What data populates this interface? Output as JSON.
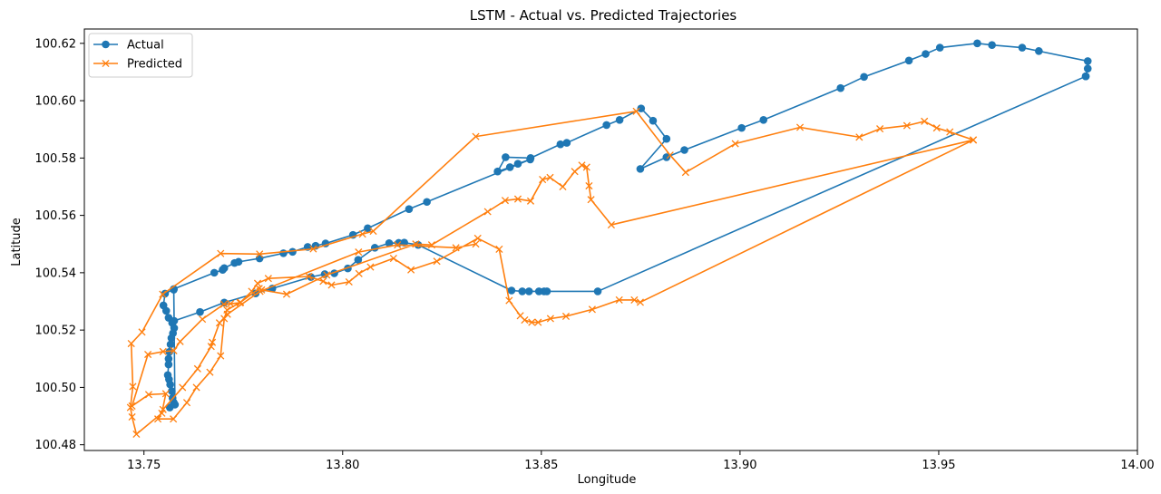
{
  "chart_data": {
    "type": "line",
    "title": "LSTM - Actual vs. Predicted Trajectories",
    "xlabel": "Longitude",
    "ylabel": "Latitude",
    "xlim": [
      13.735,
      14.0
    ],
    "ylim": [
      100.478,
      100.625
    ],
    "xticks": [
      13.75,
      13.8,
      13.85,
      13.9,
      13.95,
      14.0
    ],
    "xtick_labels": [
      "13.75",
      "13.80",
      "13.85",
      "13.90",
      "13.95",
      "14.00"
    ],
    "yticks": [
      100.48,
      100.5,
      100.52,
      100.54,
      100.56,
      100.58,
      100.6,
      100.62
    ],
    "ytick_labels": [
      "100.48",
      "100.50",
      "100.52",
      "100.54",
      "100.56",
      "100.58",
      "100.60",
      "100.62"
    ],
    "grid": false,
    "legend_position": "top-left",
    "series": [
      {
        "name": "Actual",
        "color": "#1f77b4",
        "marker": "circle",
        "points": [
          [
            13.987,
            100.6085
          ],
          [
            13.9875,
            100.6112
          ],
          [
            13.9875,
            100.6138
          ],
          [
            13.9752,
            100.6173
          ],
          [
            13.971,
            100.6185
          ],
          [
            13.9634,
            100.6194
          ],
          [
            13.9597,
            100.62
          ],
          [
            13.9503,
            100.6185
          ],
          [
            13.9467,
            100.6163
          ],
          [
            13.9425,
            100.614
          ],
          [
            13.9312,
            100.6083
          ],
          [
            13.9253,
            100.6044
          ],
          [
            13.9059,
            100.5933
          ],
          [
            13.9004,
            100.5905
          ],
          [
            13.886,
            100.5828
          ],
          [
            13.8815,
            100.5803
          ],
          [
            13.8749,
            100.5762
          ],
          [
            13.8815,
            100.5867
          ],
          [
            13.8781,
            100.593
          ],
          [
            13.8751,
            100.5973
          ],
          [
            13.8697,
            100.5933
          ],
          [
            13.8664,
            100.5915
          ],
          [
            13.8564,
            100.5853
          ],
          [
            13.8548,
            100.5848
          ],
          [
            13.8473,
            100.58
          ],
          [
            13.841,
            100.5803
          ],
          [
            13.839,
            100.5753
          ],
          [
            13.8421,
            100.5768
          ],
          [
            13.8441,
            100.578
          ],
          [
            13.8472,
            100.5795
          ],
          [
            13.8212,
            100.5647
          ],
          [
            13.8167,
            100.5622
          ],
          [
            13.8063,
            100.5555
          ],
          [
            13.8026,
            100.5532
          ],
          [
            13.7957,
            100.5502
          ],
          [
            13.7932,
            100.5494
          ],
          [
            13.7912,
            100.549
          ],
          [
            13.7874,
            100.5473
          ],
          [
            13.7851,
            100.5468
          ],
          [
            13.7791,
            100.545
          ],
          [
            13.7738,
            100.5438
          ],
          [
            13.7728,
            100.5434
          ],
          [
            13.7702,
            100.5416
          ],
          [
            13.7698,
            100.541
          ],
          [
            13.7677,
            100.54
          ],
          [
            13.7575,
            100.5343
          ],
          [
            13.7553,
            100.5327
          ],
          [
            13.7549,
            100.5286
          ],
          [
            13.7556,
            100.5267
          ],
          [
            13.7562,
            100.5243
          ],
          [
            13.7571,
            100.5225
          ],
          [
            13.7576,
            100.5207
          ],
          [
            13.7573,
            100.5189
          ],
          [
            13.7569,
            100.5172
          ],
          [
            13.7567,
            100.515
          ],
          [
            13.7564,
            100.5124
          ],
          [
            13.7562,
            100.51
          ],
          [
            13.7562,
            100.508
          ],
          [
            13.756,
            100.5043
          ],
          [
            13.7563,
            100.5028
          ],
          [
            13.7566,
            100.501
          ],
          [
            13.757,
            100.4987
          ],
          [
            13.7572,
            100.4963
          ],
          [
            13.7575,
            100.4947
          ],
          [
            13.7565,
            100.493
          ],
          [
            13.7578,
            100.494
          ],
          [
            13.7575,
            100.5341
          ],
          [
            13.7576,
            100.5232
          ],
          [
            13.7641,
            100.5263
          ],
          [
            13.7702,
            100.5296
          ],
          [
            13.7781,
            100.5328
          ],
          [
            13.7823,
            100.5345
          ],
          [
            13.792,
            100.5385
          ],
          [
            13.7955,
            100.5395
          ],
          [
            13.7979,
            100.5398
          ],
          [
            13.8013,
            100.5415
          ],
          [
            13.8039,
            100.5445
          ],
          [
            13.8081,
            100.5487
          ],
          [
            13.8117,
            100.5503
          ],
          [
            13.8141,
            100.5504
          ],
          [
            13.8155,
            100.5505
          ],
          [
            13.819,
            100.5497
          ],
          [
            13.8425,
            100.5338
          ],
          [
            13.8452,
            100.5335
          ],
          [
            13.8469,
            100.5335
          ],
          [
            13.8494,
            100.5335
          ],
          [
            13.8507,
            100.5335
          ],
          [
            13.8514,
            100.5335
          ],
          [
            13.8642,
            100.5335
          ],
          [
            13.987,
            100.6085
          ]
        ]
      },
      {
        "name": "Predicted",
        "color": "#ff7f0e",
        "marker": "x",
        "points": [
          [
            13.9587,
            100.5863
          ],
          [
            13.9528,
            100.5891
          ],
          [
            13.9495,
            100.5905
          ],
          [
            13.9464,
            100.5928
          ],
          [
            13.942,
            100.5913
          ],
          [
            13.9352,
            100.5902
          ],
          [
            13.93,
            100.5873
          ],
          [
            13.9151,
            100.5907
          ],
          [
            13.8988,
            100.585
          ],
          [
            13.8863,
            100.575
          ],
          [
            13.8824,
            100.581
          ],
          [
            13.8739,
            100.5963
          ],
          [
            13.8335,
            100.5875
          ],
          [
            13.8077,
            100.5545
          ],
          [
            13.805,
            100.5535
          ],
          [
            13.7926,
            100.5483
          ],
          [
            13.7791,
            100.5465
          ],
          [
            13.7693,
            100.5467
          ],
          [
            13.7547,
            100.5325
          ],
          [
            13.7495,
            100.5193
          ],
          [
            13.7468,
            100.5153
          ],
          [
            13.7472,
            100.5003
          ],
          [
            13.7466,
            100.493
          ],
          [
            13.747,
            100.4897
          ],
          [
            13.7481,
            100.4837
          ],
          [
            13.7545,
            100.491
          ],
          [
            13.7555,
            100.4978
          ],
          [
            13.7512,
            100.4975
          ],
          [
            13.747,
            100.4935
          ],
          [
            13.751,
            100.5115
          ],
          [
            13.7548,
            100.5125
          ],
          [
            13.7575,
            100.5128
          ],
          [
            13.7591,
            100.516
          ],
          [
            13.7647,
            100.5238
          ],
          [
            13.7701,
            100.529
          ],
          [
            13.7718,
            100.5292
          ],
          [
            13.7742,
            100.5295
          ],
          [
            13.7771,
            100.5335
          ],
          [
            13.7786,
            100.5363
          ],
          [
            13.7813,
            100.538
          ],
          [
            13.7915,
            100.5387
          ],
          [
            13.7951,
            100.537
          ],
          [
            13.7972,
            100.5357
          ],
          [
            13.8016,
            100.5368
          ],
          [
            13.8041,
            100.5397
          ],
          [
            13.807,
            100.542
          ],
          [
            13.8128,
            100.545
          ],
          [
            13.8172,
            100.541
          ],
          [
            13.8237,
            100.544
          ],
          [
            13.834,
            100.552
          ],
          [
            13.8394,
            100.5482
          ],
          [
            13.8419,
            100.5303
          ],
          [
            13.8447,
            100.525
          ],
          [
            13.8458,
            100.5235
          ],
          [
            13.8476,
            100.5227
          ],
          [
            13.8492,
            100.5227
          ],
          [
            13.8523,
            100.524
          ],
          [
            13.8562,
            100.5248
          ],
          [
            13.8628,
            100.5272
          ],
          [
            13.8696,
            100.5305
          ],
          [
            13.8734,
            100.5305
          ],
          [
            13.8749,
            100.5297
          ],
          [
            13.9587,
            100.5863
          ],
          [
            13.8676,
            100.5567
          ],
          [
            13.8625,
            100.5655
          ],
          [
            13.862,
            100.5703
          ],
          [
            13.8614,
            100.5768
          ],
          [
            13.8602,
            100.5775
          ],
          [
            13.8584,
            100.5753
          ],
          [
            13.8554,
            100.57
          ],
          [
            13.8522,
            100.5732
          ],
          [
            13.8503,
            100.5725
          ],
          [
            13.8473,
            100.565
          ],
          [
            13.8441,
            100.5657
          ],
          [
            13.8409,
            100.5652
          ],
          [
            13.8365,
            100.5613
          ],
          [
            13.8224,
            100.5497
          ],
          [
            13.8184,
            100.55
          ],
          [
            13.796,
            100.5392
          ],
          [
            13.7859,
            100.5325
          ],
          [
            13.7796,
            100.534
          ],
          [
            13.779,
            100.5345
          ],
          [
            13.7743,
            100.5297
          ],
          [
            13.7709,
            100.527
          ],
          [
            13.7702,
            100.524
          ],
          [
            13.7693,
            100.511
          ],
          [
            13.7666,
            100.5053
          ],
          [
            13.7632,
            100.5
          ],
          [
            13.7608,
            100.4947
          ],
          [
            13.7574,
            100.489
          ],
          [
            13.7535,
            100.489
          ],
          [
            13.7548,
            100.4923
          ],
          [
            13.7597,
            100.5
          ],
          [
            13.7635,
            100.5065
          ],
          [
            13.7669,
            100.5143
          ],
          [
            13.7672,
            100.5157
          ],
          [
            13.769,
            100.5225
          ],
          [
            13.771,
            100.5255
          ],
          [
            13.7792,
            100.5335
          ],
          [
            13.804,
            100.5472
          ],
          [
            13.8138,
            100.5497
          ],
          [
            13.8285,
            100.5487
          ],
          [
            13.8335,
            100.55
          ]
        ]
      }
    ]
  }
}
